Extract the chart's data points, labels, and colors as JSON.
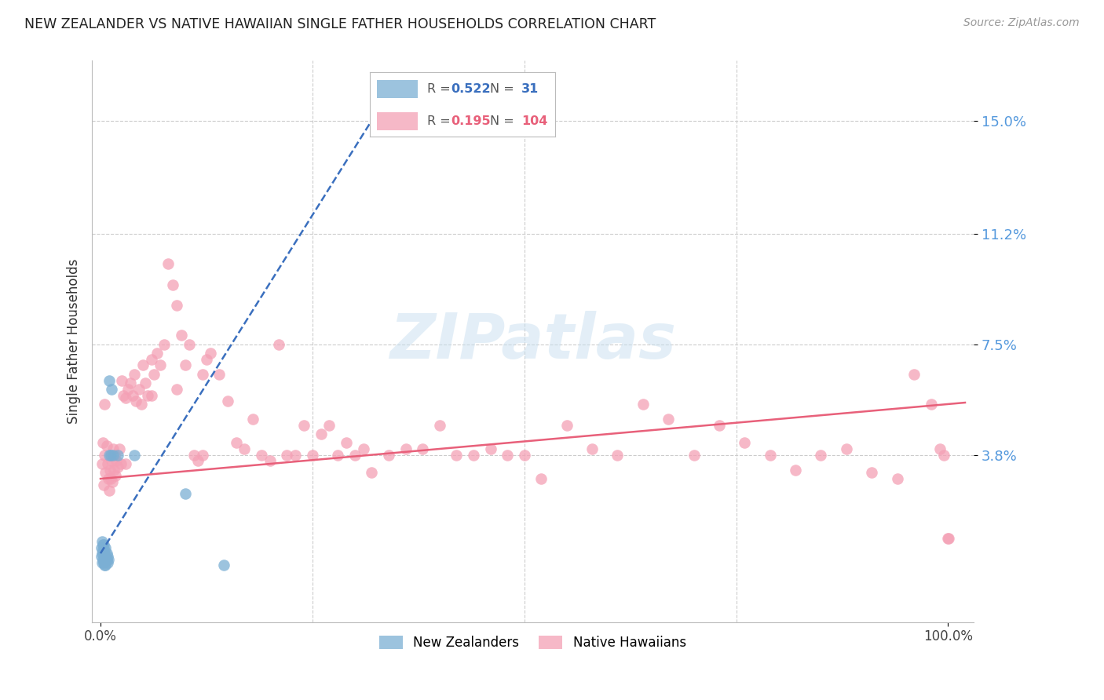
{
  "title": "NEW ZEALANDER VS NATIVE HAWAIIAN SINGLE FATHER HOUSEHOLDS CORRELATION CHART",
  "source": "Source: ZipAtlas.com",
  "ylabel": "Single Father Households",
  "ytick_labels": [
    "15.0%",
    "11.2%",
    "7.5%",
    "3.8%"
  ],
  "ytick_values": [
    0.15,
    0.112,
    0.075,
    0.038
  ],
  "xlim": [
    -0.01,
    1.03
  ],
  "ylim": [
    -0.018,
    0.17
  ],
  "legend_blue_R": "0.522",
  "legend_blue_N": "31",
  "legend_pink_R": "0.195",
  "legend_pink_N": "104",
  "blue_color": "#7bafd4",
  "pink_color": "#f4a0b5",
  "blue_line_color": "#3a6fbe",
  "pink_line_color": "#e8607a",
  "watermark_color": "#c8dff0",
  "nz_x": [
    0.001,
    0.001,
    0.002,
    0.002,
    0.002,
    0.003,
    0.003,
    0.003,
    0.004,
    0.004,
    0.004,
    0.005,
    0.005,
    0.005,
    0.006,
    0.006,
    0.006,
    0.007,
    0.007,
    0.008,
    0.008,
    0.009,
    0.01,
    0.01,
    0.012,
    0.013,
    0.015,
    0.02,
    0.04,
    0.1,
    0.145
  ],
  "nz_y": [
    0.004,
    0.007,
    0.002,
    0.005,
    0.009,
    0.003,
    0.006,
    0.008,
    0.002,
    0.005,
    0.008,
    0.003,
    0.006,
    0.001,
    0.004,
    0.007,
    0.001,
    0.003,
    0.005,
    0.002,
    0.004,
    0.003,
    0.038,
    0.063,
    0.038,
    0.06,
    0.038,
    0.038,
    0.038,
    0.025,
    0.001
  ],
  "nh_x": [
    0.002,
    0.003,
    0.004,
    0.005,
    0.005,
    0.006,
    0.007,
    0.008,
    0.009,
    0.01,
    0.011,
    0.012,
    0.013,
    0.014,
    0.015,
    0.016,
    0.017,
    0.018,
    0.019,
    0.02,
    0.022,
    0.024,
    0.025,
    0.027,
    0.03,
    0.032,
    0.035,
    0.038,
    0.04,
    0.042,
    0.045,
    0.048,
    0.05,
    0.053,
    0.056,
    0.06,
    0.063,
    0.067,
    0.07,
    0.075,
    0.08,
    0.085,
    0.09,
    0.095,
    0.1,
    0.105,
    0.11,
    0.115,
    0.12,
    0.125,
    0.13,
    0.14,
    0.15,
    0.16,
    0.17,
    0.18,
    0.19,
    0.2,
    0.21,
    0.22,
    0.23,
    0.24,
    0.25,
    0.26,
    0.27,
    0.28,
    0.29,
    0.3,
    0.31,
    0.32,
    0.34,
    0.36,
    0.38,
    0.4,
    0.42,
    0.44,
    0.46,
    0.48,
    0.5,
    0.52,
    0.55,
    0.58,
    0.61,
    0.64,
    0.67,
    0.7,
    0.73,
    0.76,
    0.79,
    0.82,
    0.85,
    0.88,
    0.91,
    0.94,
    0.96,
    0.98,
    0.99,
    0.995,
    1.0,
    1.001,
    0.03,
    0.06,
    0.09,
    0.12
  ],
  "nh_y": [
    0.035,
    0.042,
    0.028,
    0.038,
    0.055,
    0.032,
    0.041,
    0.035,
    0.03,
    0.026,
    0.033,
    0.03,
    0.036,
    0.029,
    0.04,
    0.033,
    0.038,
    0.031,
    0.036,
    0.034,
    0.04,
    0.035,
    0.063,
    0.058,
    0.057,
    0.06,
    0.062,
    0.058,
    0.065,
    0.056,
    0.06,
    0.055,
    0.068,
    0.062,
    0.058,
    0.07,
    0.065,
    0.072,
    0.068,
    0.075,
    0.102,
    0.095,
    0.088,
    0.078,
    0.068,
    0.075,
    0.038,
    0.036,
    0.065,
    0.07,
    0.072,
    0.065,
    0.056,
    0.042,
    0.04,
    0.05,
    0.038,
    0.036,
    0.075,
    0.038,
    0.038,
    0.048,
    0.038,
    0.045,
    0.048,
    0.038,
    0.042,
    0.038,
    0.04,
    0.032,
    0.038,
    0.04,
    0.04,
    0.048,
    0.038,
    0.038,
    0.04,
    0.038,
    0.038,
    0.03,
    0.048,
    0.04,
    0.038,
    0.055,
    0.05,
    0.038,
    0.048,
    0.042,
    0.038,
    0.033,
    0.038,
    0.04,
    0.032,
    0.03,
    0.065,
    0.055,
    0.04,
    0.038,
    0.01,
    0.01,
    0.035,
    0.058,
    0.06,
    0.038
  ]
}
